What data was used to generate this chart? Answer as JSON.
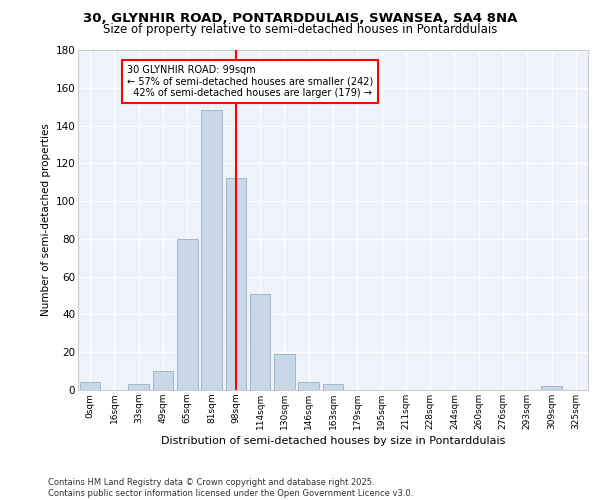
{
  "title_line1": "30, GLYNHIR ROAD, PONTARDDULAIS, SWANSEA, SA4 8NA",
  "title_line2": "Size of property relative to semi-detached houses in Pontarddulais",
  "xlabel": "Distribution of semi-detached houses by size in Pontarddulais",
  "ylabel": "Number of semi-detached properties",
  "categories": [
    "0sqm",
    "16sqm",
    "33sqm",
    "49sqm",
    "65sqm",
    "81sqm",
    "98sqm",
    "114sqm",
    "130sqm",
    "146sqm",
    "163sqm",
    "179sqm",
    "195sqm",
    "211sqm",
    "228sqm",
    "244sqm",
    "260sqm",
    "276sqm",
    "293sqm",
    "309sqm",
    "325sqm"
  ],
  "values": [
    4,
    0,
    3,
    10,
    80,
    148,
    112,
    51,
    19,
    4,
    3,
    0,
    0,
    0,
    0,
    0,
    0,
    0,
    0,
    2,
    0
  ],
  "bar_color": "#c8d8e8",
  "bar_edge_color": "#a0b8cc",
  "vline_x_index": 6,
  "vline_color": "red",
  "annotation_text": "30 GLYNHIR ROAD: 99sqm\n← 57% of semi-detached houses are smaller (242)\n  42% of semi-detached houses are larger (179) →",
  "annotation_box_color": "white",
  "annotation_box_edge": "red",
  "ylim": [
    0,
    180
  ],
  "yticks": [
    0,
    20,
    40,
    60,
    80,
    100,
    120,
    140,
    160,
    180
  ],
  "background_color": "#eef2fb",
  "grid_color": "#ffffff",
  "footer": "Contains HM Land Registry data © Crown copyright and database right 2025.\nContains public sector information licensed under the Open Government Licence v3.0."
}
